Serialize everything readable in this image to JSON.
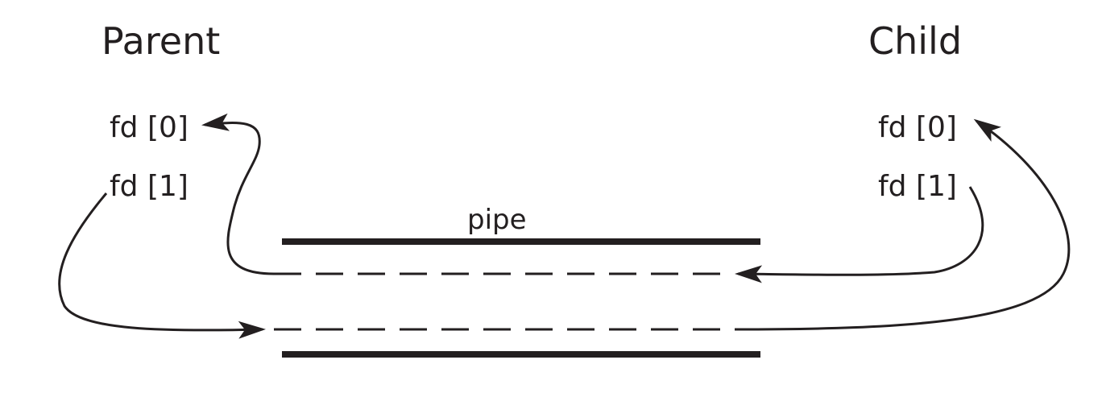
{
  "parent": {
    "title": "Parent",
    "fd_read": "fd [0]",
    "fd_write": "fd [1]"
  },
  "child": {
    "title": "Child",
    "fd_read": "fd [0]",
    "fd_write": "fd [1]"
  },
  "pipe": {
    "label": "pipe"
  },
  "colors": {
    "ink": "#231f20",
    "background": "#ffffff"
  }
}
